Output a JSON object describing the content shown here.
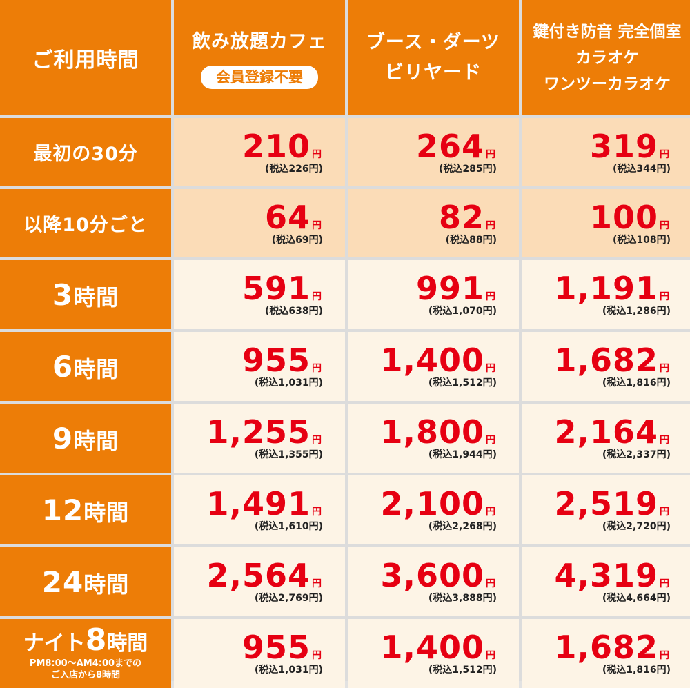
{
  "header": {
    "corner": "ご利用時間",
    "columns": [
      {
        "title_lines": [
          "飲み放題カフェ"
        ],
        "badge": "会員登録不要"
      },
      {
        "title_lines": [
          "ブース・ダーツ",
          "ビリヤード"
        ]
      },
      {
        "title_lines": [
          "鍵付き防音 完全個室",
          "カラオケ",
          "ワンツーカラオケ"
        ]
      }
    ]
  },
  "yen": "円",
  "rows": [
    {
      "label": "最初の30分",
      "cells": [
        {
          "price": "210",
          "tax": "(税込226円)"
        },
        {
          "price": "264",
          "tax": "(税込285円)"
        },
        {
          "price": "319",
          "tax": "(税込344円)"
        }
      ]
    },
    {
      "label": "以降10分ごと",
      "cells": [
        {
          "price": "64",
          "tax": "(税込69円)"
        },
        {
          "price": "82",
          "tax": "(税込88円)"
        },
        {
          "price": "100",
          "tax": "(税込108円)"
        }
      ]
    },
    {
      "label_num": "3",
      "label_unit": "時間",
      "cells": [
        {
          "price": "591",
          "tax": "(税込638円)"
        },
        {
          "price": "991",
          "tax": "(税込1,070円)"
        },
        {
          "price": "1,191",
          "tax": "(税込1,286円)"
        }
      ]
    },
    {
      "label_num": "6",
      "label_unit": "時間",
      "cells": [
        {
          "price": "955",
          "tax": "(税込1,031円)"
        },
        {
          "price": "1,400",
          "tax": "(税込1,512円)"
        },
        {
          "price": "1,682",
          "tax": "(税込1,816円)"
        }
      ]
    },
    {
      "label_num": "9",
      "label_unit": "時間",
      "cells": [
        {
          "price": "1,255",
          "tax": "(税込1,355円)"
        },
        {
          "price": "1,800",
          "tax": "(税込1,944円)"
        },
        {
          "price": "2,164",
          "tax": "(税込2,337円)"
        }
      ]
    },
    {
      "label_num": "12",
      "label_unit": "時間",
      "cells": [
        {
          "price": "1,491",
          "tax": "(税込1,610円)"
        },
        {
          "price": "2,100",
          "tax": "(税込2,268円)"
        },
        {
          "price": "2,519",
          "tax": "(税込2,720円)"
        }
      ]
    },
    {
      "label_num": "24",
      "label_unit": "時間",
      "cells": [
        {
          "price": "2,564",
          "tax": "(税込2,769円)"
        },
        {
          "price": "3,600",
          "tax": "(税込3,888円)"
        },
        {
          "price": "4,319",
          "tax": "(税込4,664円)"
        }
      ]
    },
    {
      "label_prefix": "ナイト",
      "label_num": "8",
      "label_unit": "時間",
      "note_lines": [
        "PM8:00～AM4:00までの",
        "ご入店から8時間"
      ],
      "cells": [
        {
          "price": "955",
          "tax": "(税込1,031円)"
        },
        {
          "price": "1,400",
          "tax": "(税込1,512円)"
        },
        {
          "price": "1,682",
          "tax": "(税込1,816円)"
        }
      ]
    }
  ],
  "colors": {
    "header_orange": "#ed7d07",
    "intro_row_bg": "#fbdcb7",
    "regular_row_bg": "#fdf4e6",
    "price_red": "#e60012"
  }
}
